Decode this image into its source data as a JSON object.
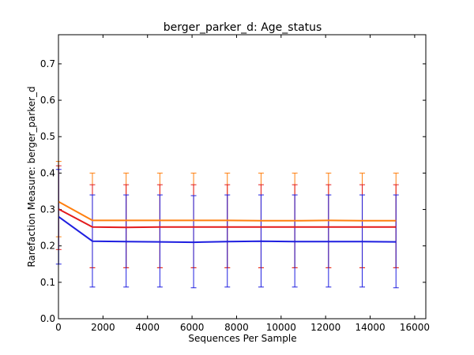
{
  "chart_data": {
    "type": "line",
    "title": "berger_parker_d: Age_status",
    "xlabel": "Sequences Per Sample",
    "ylabel": "Rarefaction Measure: berger_parker_d",
    "xlim": [
      0,
      16500
    ],
    "ylim": [
      0,
      0.78
    ],
    "xticks": [
      0,
      2000,
      4000,
      6000,
      8000,
      10000,
      12000,
      14000,
      16000
    ],
    "yticks": [
      0.0,
      0.1,
      0.2,
      0.3,
      0.4,
      0.5,
      0.6,
      0.7
    ],
    "xtick_labels": [
      "0",
      "2000",
      "4000",
      "6000",
      "8000",
      "10000",
      "12000",
      "14000",
      "16000"
    ],
    "ytick_labels": [
      "0.0",
      "0.1",
      "0.2",
      "0.3",
      "0.4",
      "0.5",
      "0.6",
      "0.7"
    ],
    "grid": false,
    "x": [
      10,
      1525,
      3040,
      4555,
      6070,
      7585,
      9100,
      10615,
      12130,
      13645,
      15160
    ],
    "series": [
      {
        "color": "#ff7f0e",
        "values": [
          0.321,
          0.27,
          0.27,
          0.27,
          0.27,
          0.27,
          0.269,
          0.269,
          0.27,
          0.269,
          0.269
        ],
        "err_low": [
          0.225,
          0.14,
          0.14,
          0.14,
          0.14,
          0.14,
          0.14,
          0.14,
          0.14,
          0.14,
          0.14
        ],
        "err_high": [
          0.432,
          0.4,
          0.4,
          0.4,
          0.4,
          0.4,
          0.4,
          0.4,
          0.4,
          0.4,
          0.4
        ]
      },
      {
        "color": "#e31a1c",
        "values": [
          0.301,
          0.252,
          0.251,
          0.252,
          0.252,
          0.252,
          0.252,
          0.252,
          0.252,
          0.252,
          0.252
        ],
        "err_low": [
          0.19,
          0.14,
          0.14,
          0.14,
          0.14,
          0.14,
          0.14,
          0.14,
          0.14,
          0.14,
          0.14
        ],
        "err_high": [
          0.42,
          0.368,
          0.368,
          0.368,
          0.368,
          0.368,
          0.368,
          0.368,
          0.368,
          0.368,
          0.368
        ]
      },
      {
        "color": "#1f1fe0",
        "values": [
          0.28,
          0.213,
          0.212,
          0.211,
          0.21,
          0.212,
          0.213,
          0.212,
          0.212,
          0.212,
          0.211
        ],
        "err_low": [
          0.15,
          0.087,
          0.087,
          0.087,
          0.085,
          0.087,
          0.087,
          0.087,
          0.087,
          0.087,
          0.085
        ],
        "err_high": [
          0.41,
          0.34,
          0.34,
          0.34,
          0.338,
          0.34,
          0.34,
          0.34,
          0.34,
          0.34,
          0.34
        ]
      }
    ]
  }
}
